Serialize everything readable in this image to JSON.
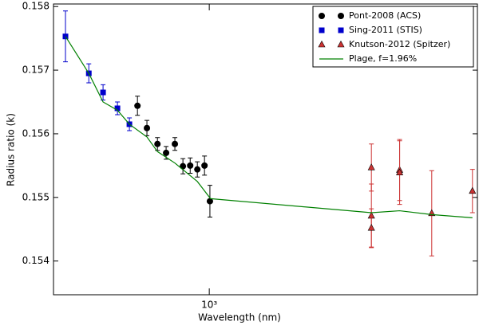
{
  "chart_data": {
    "type": "scatter",
    "xlabel": "Wavelength (nm)",
    "ylabel": "Radius ratio (k)",
    "xscale": "log",
    "xlim": [
      292,
      8320
    ],
    "xticks": [
      {
        "value": 1000,
        "label": "10³"
      }
    ],
    "ylim": [
      0.15347,
      0.15804
    ],
    "yticks": [
      0.154,
      0.155,
      0.156,
      0.157,
      0.158
    ],
    "legend": "upper right",
    "series": [
      {
        "name": "Pont-2008 (ACS)",
        "color": "#000000",
        "marker": "circle",
        "x": [
          567,
          611,
          664,
          711,
          762,
          812,
          860,
          910,
          963,
          1005
        ],
        "values": [
          0.15644,
          0.15609,
          0.15584,
          0.1557,
          0.15584,
          0.15549,
          0.1555,
          0.15544,
          0.1555,
          0.15494
        ],
        "errors": [
          0.00015,
          0.00012,
          0.0001,
          0.0001,
          0.0001,
          0.00012,
          0.00012,
          0.00012,
          0.00015,
          0.00025
        ]
      },
      {
        "name": "Sing-2011 (STIS)",
        "color": "#0000cc",
        "marker": "square",
        "x": [
          321,
          386,
          432,
          484,
          532
        ],
        "values": [
          0.15753,
          0.15695,
          0.15665,
          0.1564,
          0.15615
        ],
        "errors": [
          0.0004,
          0.00015,
          0.00012,
          0.0001,
          0.0001
        ]
      },
      {
        "name": "Knutson-2012 (Spitzer)",
        "color": "#cc3333",
        "marker": "triangle",
        "x": [
          3600,
          3600,
          3600,
          4500,
          4500,
          5800,
          8000
        ],
        "values": [
          0.15547,
          0.15471,
          0.15452,
          0.15543,
          0.15539,
          0.15475,
          0.1551
        ],
        "errors": [
          0.00037,
          0.0005,
          0.0003,
          0.00048,
          0.0005,
          0.00067,
          0.00034
        ]
      },
      {
        "name": "Plage, f=1.96%",
        "color": "#008000",
        "marker": "line",
        "x": [
          321,
          386,
          432,
          484,
          532,
          611,
          664,
          762,
          910,
          1010,
          3600,
          4500,
          5800,
          8000
        ],
        "values": [
          0.15753,
          0.15695,
          0.1565,
          0.15637,
          0.15615,
          0.15595,
          0.15572,
          0.15554,
          0.15525,
          0.15498,
          0.15476,
          0.15479,
          0.15473,
          0.15468
        ]
      }
    ]
  }
}
